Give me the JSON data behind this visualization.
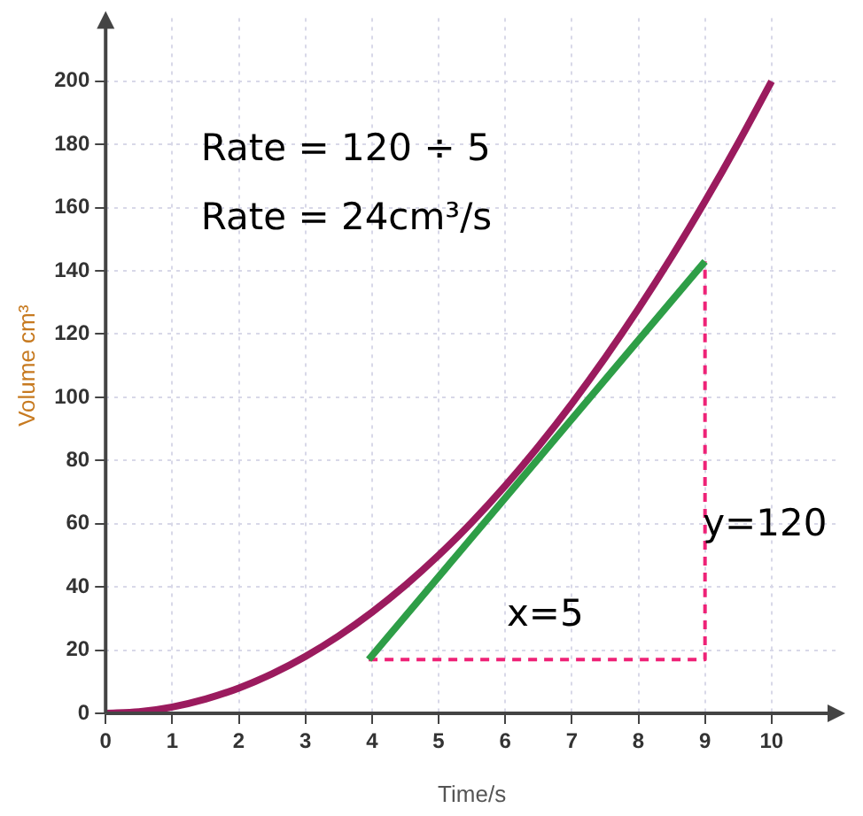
{
  "chart_data": {
    "type": "line",
    "xlabel": "Time/s",
    "ylabel": "Volume cm³",
    "xlim": [
      0,
      11
    ],
    "ylim": [
      0,
      220
    ],
    "xticks": [
      0,
      1,
      2,
      3,
      4,
      5,
      6,
      7,
      8,
      9,
      10
    ],
    "yticks": [
      0,
      20,
      40,
      60,
      80,
      100,
      120,
      140,
      160,
      180,
      200
    ],
    "grid": true,
    "legend": false,
    "marker": "none",
    "series": [
      {
        "color": "#9b1b5e",
        "x": [
          0,
          0.5,
          1,
          1.5,
          2,
          2.5,
          3,
          3.5,
          4,
          4.5,
          5,
          5.5,
          6,
          6.5,
          7,
          7.5,
          8,
          8.5,
          9,
          9.5,
          10
        ],
        "values": [
          0,
          0.5,
          2,
          4.5,
          8,
          12.5,
          18,
          24.5,
          32,
          40.5,
          50,
          60.5,
          72,
          84.5,
          98,
          112.5,
          128,
          144.5,
          162,
          180.5,
          200
        ]
      },
      {
        "color": "#2e9e47",
        "x": [
          3.95,
          9
        ],
        "values": [
          17,
          143
        ]
      },
      {
        "color": "#ee2277",
        "line_style": "dashed",
        "x": [
          3.95,
          9,
          9
        ],
        "values": [
          17,
          17,
          143
        ]
      }
    ],
    "annotations": [
      "Rate = 120 ÷ 5",
      "Rate = 24cm³/s",
      "x=5",
      "y=120"
    ]
  }
}
